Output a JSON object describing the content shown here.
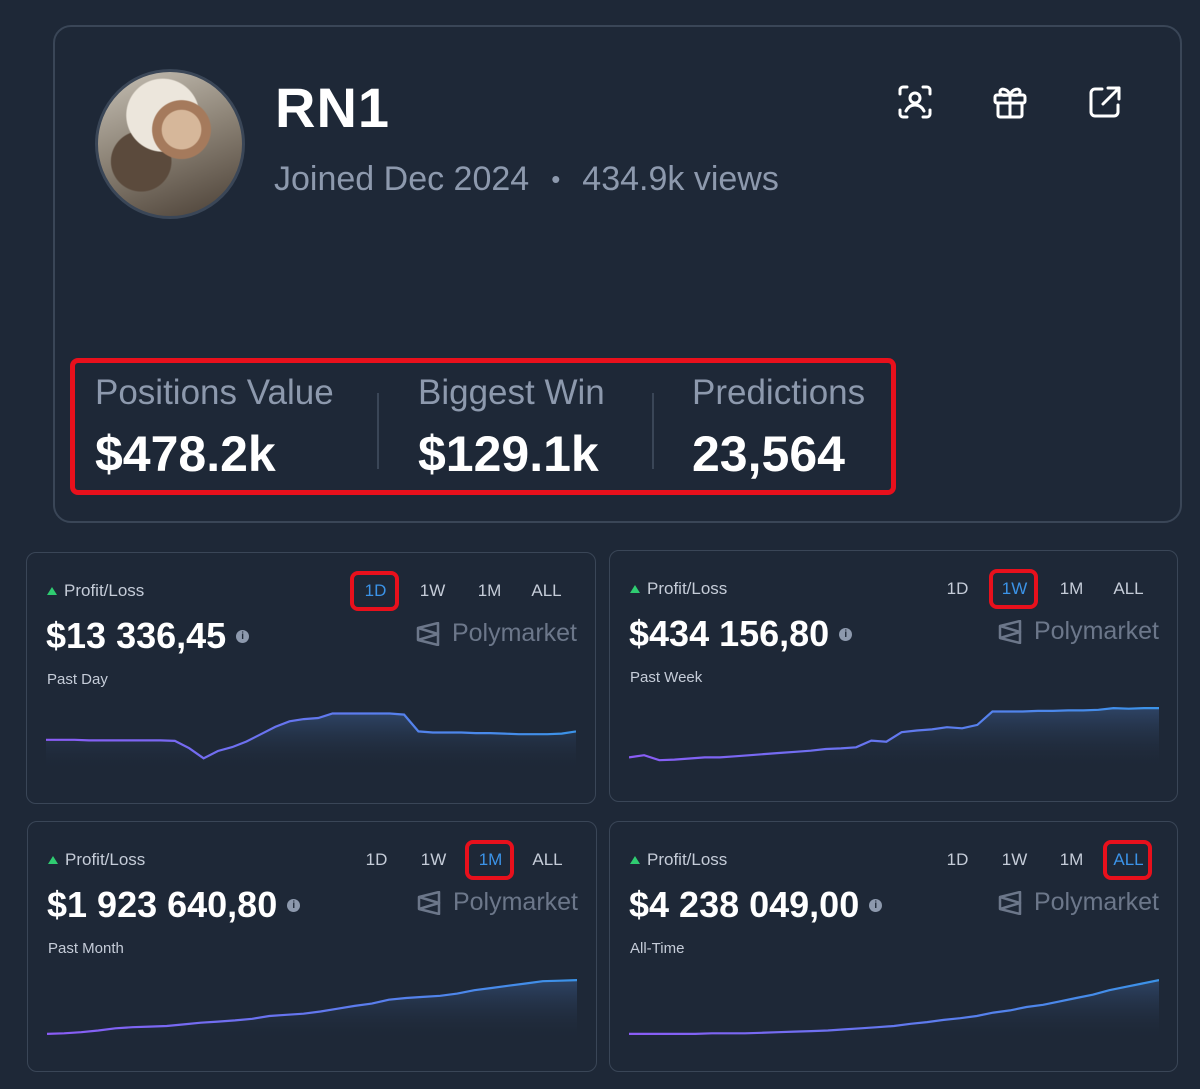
{
  "profile": {
    "username": "RN1",
    "joined": "Joined Dec 2024",
    "separator": "•",
    "views": "434.9k views"
  },
  "actions": {
    "icons": [
      "profile-scan-icon",
      "gift-icon",
      "external-link-icon"
    ]
  },
  "stats": [
    {
      "label": "Positions Value",
      "value": "$478.2k"
    },
    {
      "label": "Biggest Win",
      "value": "$129.1k"
    },
    {
      "label": "Predictions",
      "value": "23,564"
    }
  ],
  "tabs": [
    "1D",
    "1W",
    "1M",
    "ALL"
  ],
  "pnl_cards": [
    {
      "title": "Profit/Loss",
      "value": "$13 336,45",
      "period": "Past Day",
      "brand": "Polymarket",
      "active_tab": 0
    },
    {
      "title": "Profit/Loss",
      "value": "$434 156,80",
      "period": "Past Week",
      "brand": "Polymarket",
      "active_tab": 1
    },
    {
      "title": "Profit/Loss",
      "value": "$1 923 640,80",
      "period": "Past Month",
      "brand": "Polymarket",
      "active_tab": 2
    },
    {
      "title": "Profit/Loss",
      "value": "$4 238 049,00",
      "period": "All-Time",
      "brand": "Polymarket",
      "active_tab": 3
    }
  ],
  "colors": {
    "background": "#1e2837",
    "border": "#3a4657",
    "highlight": "#e8101c",
    "active_tab": "#3b93e8",
    "up_arrow": "#2fcc71",
    "line_start": "#8b5cf6",
    "line_end": "#3b93e8"
  },
  "chart_data": [
    {
      "type": "area",
      "series": [
        {
          "values": [
            0.45,
            0.45,
            0.45,
            0.44,
            0.44,
            0.44,
            0.44,
            0.44,
            0.44,
            0.43,
            0.3,
            0.12,
            0.25,
            0.32,
            0.42,
            0.55,
            0.68,
            0.78,
            0.82,
            0.84,
            0.92,
            0.92,
            0.92,
            0.92,
            0.92,
            0.9,
            0.6,
            0.58,
            0.58,
            0.58,
            0.57,
            0.57,
            0.56,
            0.55,
            0.55,
            0.55,
            0.56,
            0.6
          ]
        }
      ]
    },
    {
      "type": "area",
      "series": [
        {
          "values": [
            0.1,
            0.14,
            0.05,
            0.06,
            0.08,
            0.1,
            0.1,
            0.12,
            0.14,
            0.16,
            0.18,
            0.2,
            0.22,
            0.25,
            0.26,
            0.28,
            0.4,
            0.38,
            0.55,
            0.58,
            0.6,
            0.64,
            0.62,
            0.68,
            0.92,
            0.92,
            0.92,
            0.93,
            0.93,
            0.94,
            0.94,
            0.95,
            0.98,
            0.97,
            0.98,
            0.98
          ]
        }
      ]
    },
    {
      "type": "area",
      "series": [
        {
          "values": [
            0.02,
            0.03,
            0.05,
            0.08,
            0.12,
            0.14,
            0.15,
            0.16,
            0.19,
            0.22,
            0.24,
            0.26,
            0.29,
            0.34,
            0.36,
            0.38,
            0.42,
            0.47,
            0.52,
            0.56,
            0.63,
            0.66,
            0.68,
            0.7,
            0.74,
            0.8,
            0.84,
            0.88,
            0.92,
            0.96,
            0.97,
            0.98
          ]
        }
      ]
    },
    {
      "type": "area",
      "series": [
        {
          "values": [
            0.02,
            0.02,
            0.02,
            0.02,
            0.02,
            0.03,
            0.03,
            0.03,
            0.04,
            0.05,
            0.06,
            0.07,
            0.08,
            0.1,
            0.12,
            0.14,
            0.16,
            0.2,
            0.23,
            0.27,
            0.3,
            0.34,
            0.4,
            0.44,
            0.5,
            0.54,
            0.6,
            0.66,
            0.72,
            0.8,
            0.86,
            0.92,
            0.98
          ]
        }
      ]
    }
  ]
}
